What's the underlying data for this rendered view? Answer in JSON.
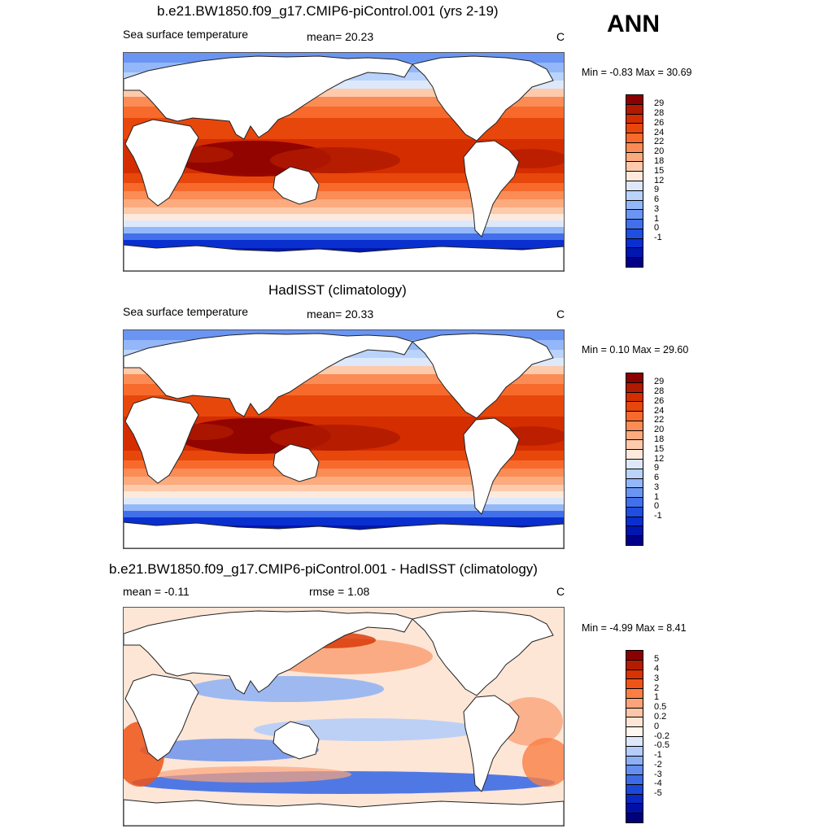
{
  "season": "ANN",
  "panels": [
    {
      "title": "b.e21.BW1850.f09_g17.CMIP6-piControl.001 (yrs 2-19)",
      "left_label": "Sea surface temperature",
      "center_label": "mean=  20.23",
      "units": "C",
      "minmax": "Min =  -0.83 Max =  30.69",
      "kind": "sst",
      "colorbar": {
        "colors": [
          "#8b0000",
          "#b01a00",
          "#d42d00",
          "#e8470b",
          "#f76a2c",
          "#fb8c55",
          "#fcab7e",
          "#fdcaab",
          "#feeadd",
          "#dde9fb",
          "#b9d3fb",
          "#93b7f8",
          "#6a95f2",
          "#4170ea",
          "#1f4ee0",
          "#0a2fcf",
          "#0016b0",
          "#00008b"
        ],
        "labels": [
          "29",
          "28",
          "26",
          "24",
          "22",
          "20",
          "18",
          "15",
          "12",
          "9",
          "6",
          "3",
          "1",
          "0",
          "-1"
        ]
      }
    },
    {
      "title": "HadISST (climatology)",
      "left_label": "Sea surface temperature",
      "center_label": "mean=  20.33",
      "units": "C",
      "minmax": "Min =   0.10 Max =  29.60",
      "kind": "sst",
      "colorbar": {
        "colors": [
          "#8b0000",
          "#b01a00",
          "#d42d00",
          "#e8470b",
          "#f76a2c",
          "#fb8c55",
          "#fcab7e",
          "#fdcaab",
          "#feeadd",
          "#dde9fb",
          "#b9d3fb",
          "#93b7f8",
          "#6a95f2",
          "#4170ea",
          "#1f4ee0",
          "#0a2fcf",
          "#0016b0",
          "#00008b"
        ],
        "labels": [
          "29",
          "28",
          "26",
          "24",
          "22",
          "20",
          "18",
          "15",
          "12",
          "9",
          "6",
          "3",
          "1",
          "0",
          "-1"
        ]
      }
    },
    {
      "title": "b.e21.BW1850.f09_g17.CMIP6-piControl.001 - HadISST (climatology)",
      "left_label": "mean =  -0.11",
      "center_label": "rmse =   1.08",
      "units": "C",
      "minmax": "Min =  -4.99 Max =   8.41",
      "kind": "diff",
      "colorbar": {
        "colors": [
          "#8b0000",
          "#b41c00",
          "#d83300",
          "#ef5416",
          "#f97f45",
          "#fba47a",
          "#fcc6a9",
          "#fde6d6",
          "#fff7f0",
          "#dde8fb",
          "#b5cdfa",
          "#8db0f5",
          "#648eef",
          "#3d6be6",
          "#1c48d9",
          "#0a28c4",
          "#0010a6",
          "#00007a"
        ],
        "labels": [
          "5",
          "4",
          "3",
          "2",
          "1",
          "0.5",
          "0.2",
          "0",
          "-0.2",
          "-0.5",
          "-1",
          "-2",
          "-3",
          "-4",
          "-5"
        ]
      }
    }
  ]
}
